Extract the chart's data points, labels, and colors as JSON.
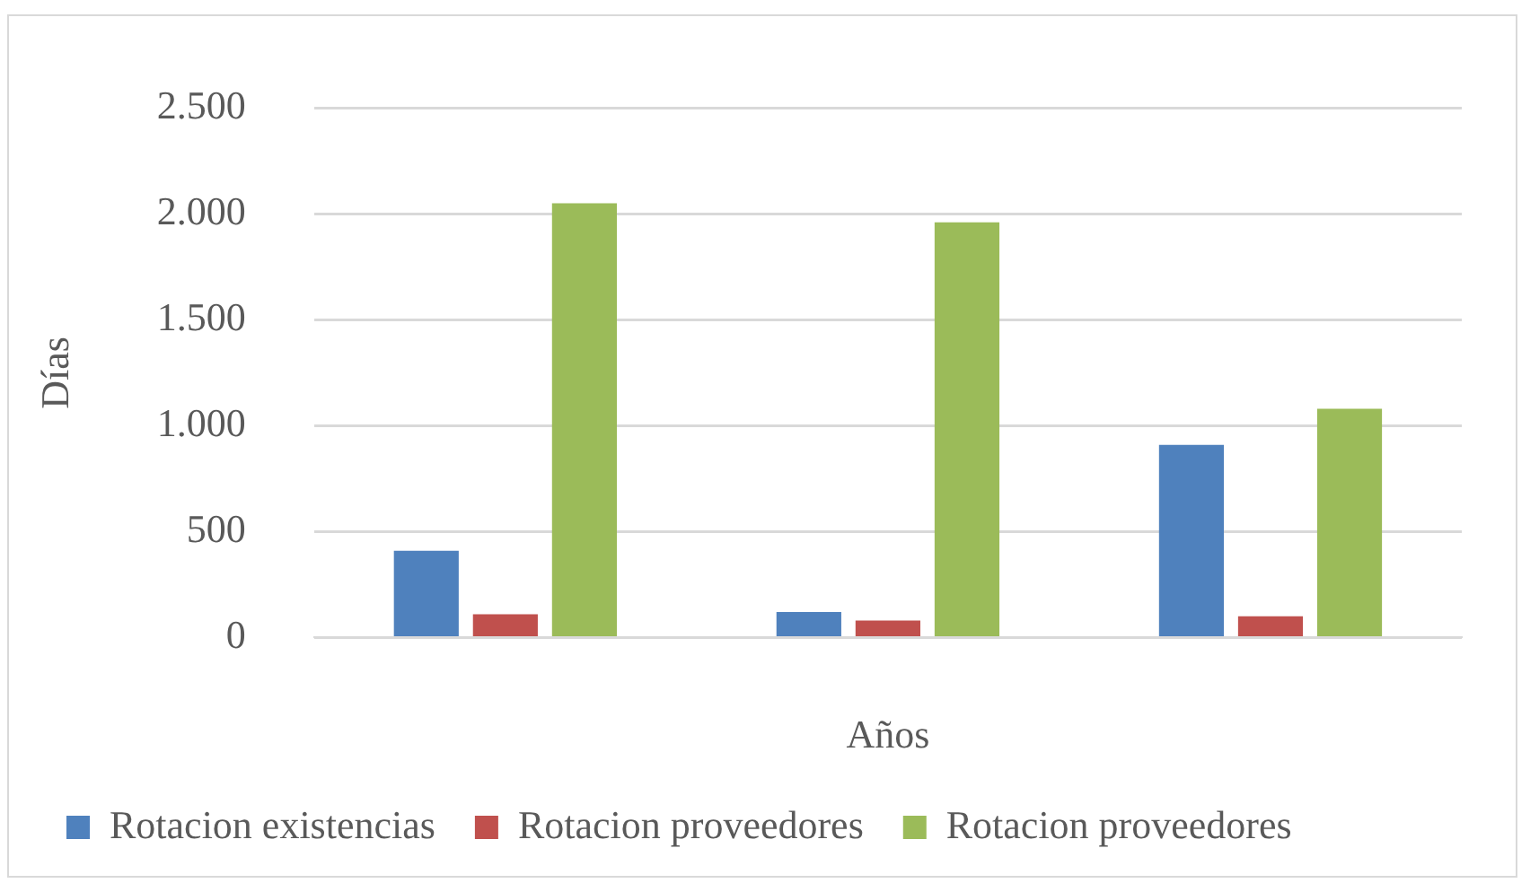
{
  "chart_data": {
    "type": "bar",
    "xlabel": "Años",
    "ylabel": "Días",
    "categories": [
      null,
      null,
      null
    ],
    "series": [
      {
        "name": "Rotacion existencias",
        "color": "#4f81bd",
        "values": [
          410,
          120,
          910
        ]
      },
      {
        "name": "Rotacion proveedores",
        "color": "#c0504d",
        "values": [
          110,
          80,
          100
        ]
      },
      {
        "name": "Rotacion proveedores",
        "color": "#9bbb59",
        "values": [
          2050,
          1960,
          1080
        ]
      }
    ],
    "ylim": [
      0,
      2500
    ],
    "yticks": [
      {
        "value": 0,
        "label": "0"
      },
      {
        "value": 500,
        "label": "500"
      },
      {
        "value": 1000,
        "label": "1.000"
      },
      {
        "value": 1500,
        "label": "1.500"
      },
      {
        "value": 2000,
        "label": "2.000"
      },
      {
        "value": 2500,
        "label": "2.500"
      }
    ],
    "grid": "y",
    "legend": "bottom"
  }
}
